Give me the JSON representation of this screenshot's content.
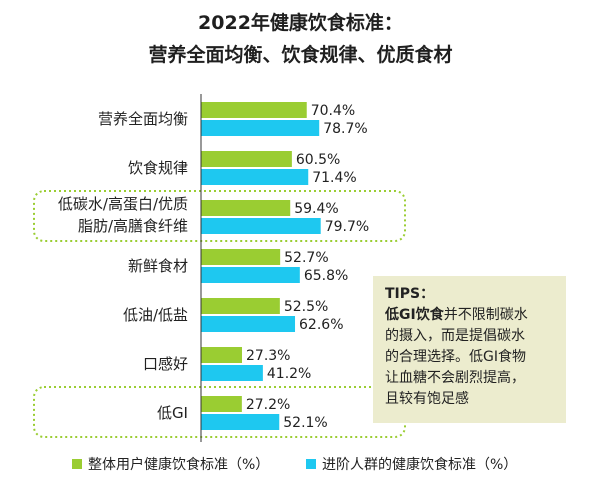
{
  "title_line1": "2022年健康饮食标准：",
  "title_line2": "营养全面均衡、饮食规律、优质食材",
  "colors": {
    "series1": "#9acd32",
    "series2": "#1ec8f0",
    "highlight_border": "#9acd32",
    "tips_bg": "#ececce"
  },
  "tips": {
    "heading": "TIPS：",
    "highlight": "低GI饮食",
    "line1_rest": "并不限制碳水",
    "line2": "的摄入，而是提倡碳水",
    "line3": "的合理选择。低GI食物",
    "line4": "让血糖不会剧烈提高，",
    "line5": "且较有饱足感"
  },
  "chart_data": {
    "type": "bar",
    "orientation": "horizontal",
    "categories": [
      [
        "营养全面均衡"
      ],
      [
        "饮食规律"
      ],
      [
        "低碳水/高蛋白/优质",
        "脂肪/高膳食纤维"
      ],
      [
        "新鲜食材"
      ],
      [
        "低油/低盐"
      ],
      [
        "口感好"
      ],
      [
        "低GI"
      ]
    ],
    "series": [
      {
        "name": "整体用户健康饮食标准（%）",
        "values": [
          70.4,
          60.5,
          59.4,
          52.7,
          52.5,
          27.3,
          27.2
        ],
        "labels": [
          "70.4%",
          "60.5%",
          "59.4%",
          "52.7%",
          "52.5%",
          "27.3%",
          "27.2%"
        ]
      },
      {
        "name": "进阶人群的健康饮食标准（%）",
        "values": [
          78.7,
          71.4,
          79.7,
          65.8,
          62.6,
          41.2,
          52.1
        ],
        "labels": [
          "78.7%",
          "71.4%",
          "79.7%",
          "65.8%",
          "62.6%",
          "41.2%",
          "52.1%"
        ]
      }
    ],
    "highlighted_categories": [
      2,
      6
    ],
    "legend": "bottom"
  }
}
